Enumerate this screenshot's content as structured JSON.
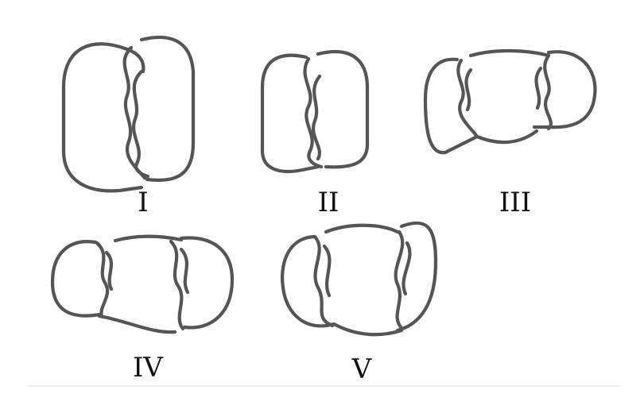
{
  "figures": [
    {
      "id": "knot-1",
      "label": "I"
    },
    {
      "id": "knot-2",
      "label": "II"
    },
    {
      "id": "knot-3",
      "label": "III"
    },
    {
      "id": "knot-4",
      "label": "IV"
    },
    {
      "id": "knot-5",
      "label": "V"
    }
  ],
  "colors": {
    "stroke": "#555555",
    "label": "#111111",
    "background": "#ffffff",
    "divider": "#e6e6e6"
  }
}
